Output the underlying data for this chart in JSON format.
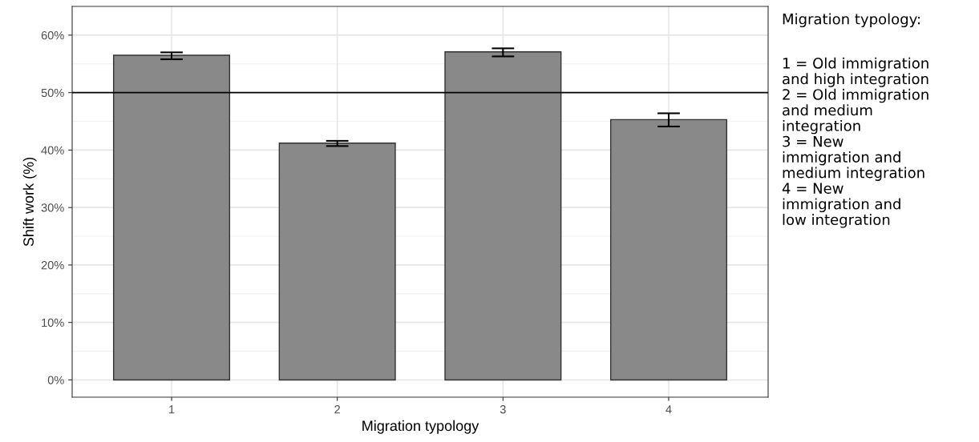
{
  "chart_data": {
    "type": "bar",
    "xlabel": "Migration typology",
    "ylabel": "Shift work (%)",
    "categories": [
      "1",
      "2",
      "3",
      "4"
    ],
    "values": [
      56.5,
      41.2,
      57.1,
      45.3
    ],
    "errors": [
      [
        55.8,
        57.0
      ],
      [
        40.7,
        41.6
      ],
      [
        56.3,
        57.7
      ],
      [
        44.1,
        46.4
      ]
    ],
    "color": "#898989",
    "ylim": [
      -3,
      65
    ],
    "yticks": [
      {
        "value": 0,
        "label": "0%"
      },
      {
        "value": 10,
        "label": "10%"
      },
      {
        "value": 20,
        "label": "20%"
      },
      {
        "value": 30,
        "label": "30%"
      },
      {
        "value": 40,
        "label": "40%"
      },
      {
        "value": 50,
        "label": "50%"
      },
      {
        "value": 60,
        "label": "60%"
      }
    ],
    "ref_lines": [
      {
        "axis": "y",
        "value": 50,
        "color": "#000000"
      }
    ],
    "grid": true,
    "annotations": [
      "Migration typology:",
      "1 = Old immigration\nand high integration\n2 = Old immigration\nand medium\nintegration\n3 = New\nimmigration and\nmedium integration\n4 = New\nimmigration and\nlow integration"
    ]
  }
}
